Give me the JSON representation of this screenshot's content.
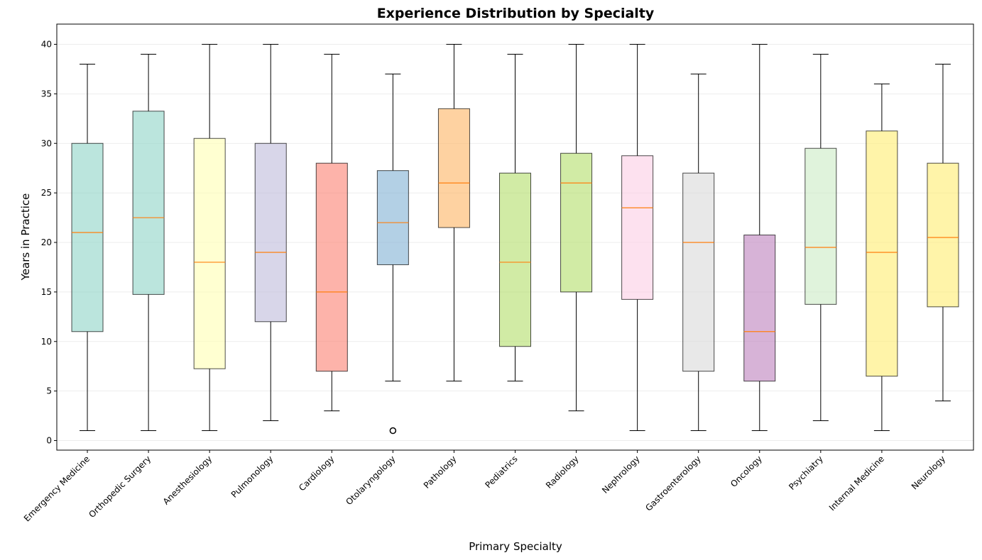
{
  "chart_data": {
    "type": "box",
    "title": "Experience Distribution by Specialty",
    "xlabel": "Primary Specialty",
    "ylabel": "Years in Practice",
    "ylim": [
      -1,
      42
    ],
    "yticks": [
      0,
      5,
      10,
      15,
      20,
      25,
      30,
      35,
      40
    ],
    "grid": "y",
    "median_color": "#ff7f0e",
    "categories": [
      "Emergency Medicine",
      "Orthopedic Surgery",
      "Anesthesiology",
      "Pulmonology",
      "Cardiology",
      "Otolaryngology",
      "Pathology",
      "Pediatrics",
      "Radiology",
      "Nephrology",
      "Gastroenterology",
      "Oncology",
      "Psychiatry",
      "Internal Medicine",
      "Neurology"
    ],
    "boxes": [
      {
        "whisker_low": 1,
        "q1": 11,
        "median": 21,
        "q3": 30,
        "whisker_high": 38,
        "outliers": [],
        "color": "#8dd3c7"
      },
      {
        "whisker_low": 1,
        "q1": 14.75,
        "median": 22.5,
        "q3": 33.25,
        "whisker_high": 39,
        "outliers": [],
        "color": "#8dd3c7"
      },
      {
        "whisker_low": 1,
        "q1": 7.25,
        "median": 18,
        "q3": 30.5,
        "whisker_high": 40,
        "outliers": [],
        "color": "#ffffb3"
      },
      {
        "whisker_low": 2,
        "q1": 12,
        "median": 19,
        "q3": 30,
        "whisker_high": 40,
        "outliers": [],
        "color": "#bebada"
      },
      {
        "whisker_low": 3,
        "q1": 7,
        "median": 15,
        "q3": 28,
        "whisker_high": 39,
        "outliers": [],
        "color": "#fb8072"
      },
      {
        "whisker_low": 6,
        "q1": 17.75,
        "median": 22,
        "q3": 27.25,
        "whisker_high": 37,
        "outliers": [
          1
        ],
        "color": "#80b1d3"
      },
      {
        "whisker_low": 6,
        "q1": 21.5,
        "median": 26,
        "q3": 33.5,
        "whisker_high": 40,
        "outliers": [],
        "color": "#fdb462"
      },
      {
        "whisker_low": 6,
        "q1": 9.5,
        "median": 18,
        "q3": 27,
        "whisker_high": 39,
        "outliers": [],
        "color": "#b3de69"
      },
      {
        "whisker_low": 3,
        "q1": 15,
        "median": 26,
        "q3": 29,
        "whisker_high": 40,
        "outliers": [],
        "color": "#b3de69"
      },
      {
        "whisker_low": 1,
        "q1": 14.25,
        "median": 23.5,
        "q3": 28.75,
        "whisker_high": 40,
        "outliers": [],
        "color": "#fccde5"
      },
      {
        "whisker_low": 1,
        "q1": 7,
        "median": 20,
        "q3": 27,
        "whisker_high": 37,
        "outliers": [],
        "color": "#d9d9d9"
      },
      {
        "whisker_low": 1,
        "q1": 6,
        "median": 11,
        "q3": 20.75,
        "whisker_high": 40,
        "outliers": [],
        "color": "#bc80bd"
      },
      {
        "whisker_low": 2,
        "q1": 13.75,
        "median": 19.5,
        "q3": 29.5,
        "whisker_high": 39,
        "outliers": [],
        "color": "#ccebc5"
      },
      {
        "whisker_low": 1,
        "q1": 6.5,
        "median": 19,
        "q3": 31.25,
        "whisker_high": 36,
        "outliers": [],
        "color": "#ffed6f"
      },
      {
        "whisker_low": 4,
        "q1": 13.5,
        "median": 20.5,
        "q3": 28,
        "whisker_high": 38,
        "outliers": [],
        "color": "#ffed6f"
      }
    ]
  }
}
